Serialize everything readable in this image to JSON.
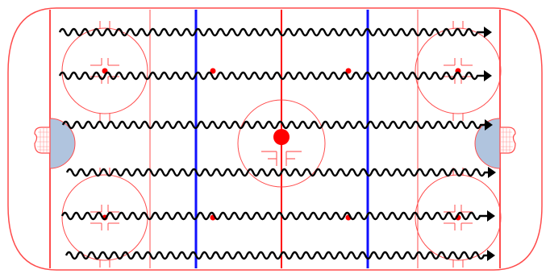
{
  "diagram": {
    "kind": "ice-hockey-rink-drill",
    "colors": {
      "board": "#ff4d4d",
      "center_line": "#ff0000",
      "blue_line": "#1010ff",
      "goal_crease": "#b0c4de",
      "faceoff_dot": "#ff0000",
      "drill_path": "#000000"
    },
    "drill": {
      "path_type": "wavy-skate-with-arrow",
      "direction": "left-to-right",
      "lane_count": 6
    }
  }
}
